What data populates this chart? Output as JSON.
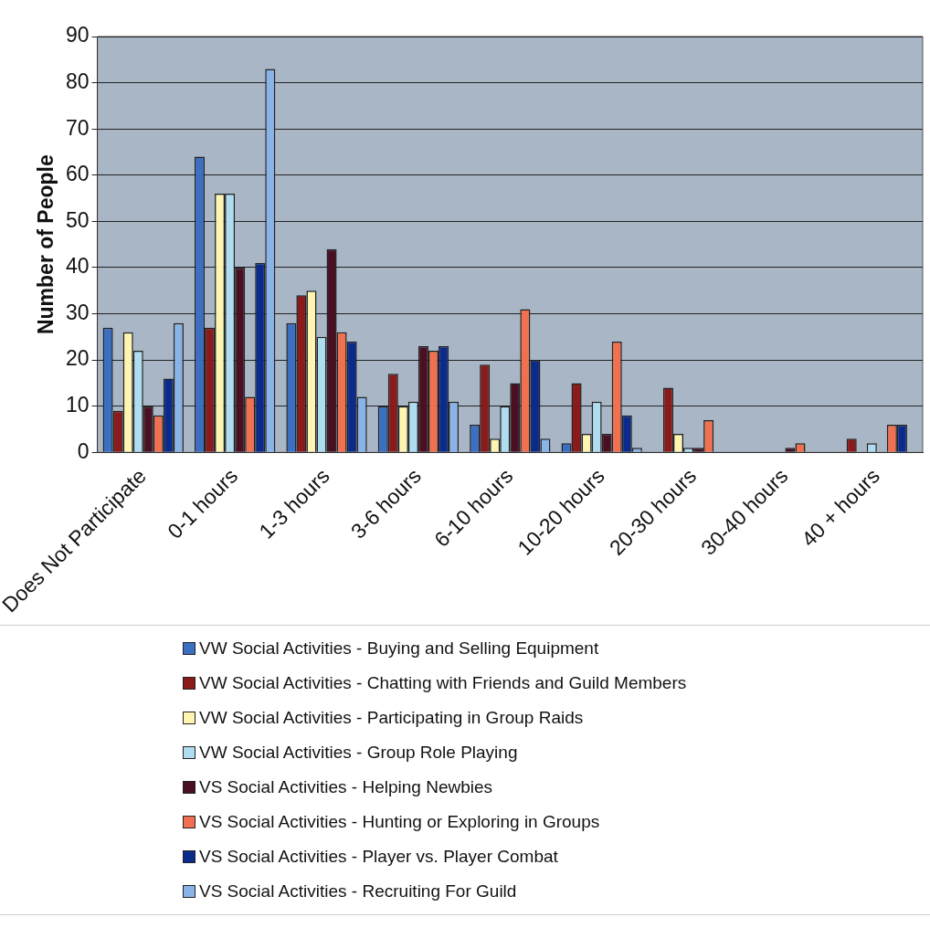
{
  "chart_data": {
    "type": "bar",
    "ylabel": "Number of People",
    "categories": [
      "Does Not Participate",
      "0-1 hours",
      "1-3 hours",
      "3-6 hours",
      "6-10 hours",
      "10-20 hours",
      "20-30 hours",
      "30-40 hours",
      "40 + hours"
    ],
    "series": [
      {
        "name": "VW Social Activities - Buying and Selling Equipment",
        "color": "#3a6fc4",
        "values": [
          27,
          64,
          28,
          10,
          6,
          2,
          0,
          0,
          0
        ]
      },
      {
        "name": "VW Social Activities - Chatting with Friends and Guild Members",
        "color": "#8b1a1a",
        "values": [
          9,
          27,
          34,
          17,
          19,
          15,
          14,
          0,
          3
        ]
      },
      {
        "name": "VW Social Activities - Participating in Group Raids",
        "color": "#fff5b0",
        "values": [
          26,
          56,
          35,
          10,
          3,
          4,
          4,
          0,
          0
        ]
      },
      {
        "name": "VW Social Activities - Group Role Playing",
        "color": "#b0dcf0",
        "values": [
          22,
          56,
          25,
          11,
          10,
          11,
          1,
          0,
          2
        ]
      },
      {
        "name": "VS Social Activities - Helping Newbies",
        "color": "#4a0f20",
        "values": [
          10,
          40,
          44,
          23,
          15,
          4,
          1,
          1,
          0
        ]
      },
      {
        "name": "VS Social Activities - Hunting or Exploring in Groups",
        "color": "#f07050",
        "values": [
          8,
          12,
          26,
          22,
          31,
          24,
          7,
          2,
          6
        ]
      },
      {
        "name": "VS Social Activities - Player vs. Player Combat",
        "color": "#0a2a8c",
        "values": [
          16,
          41,
          24,
          23,
          20,
          8,
          0,
          0,
          6
        ]
      },
      {
        "name": "VS Social Activities - Recruiting For Guild",
        "color": "#8ab4e8",
        "values": [
          28,
          83,
          12,
          11,
          3,
          1,
          0,
          0,
          0
        ]
      }
    ],
    "ylim": [
      0,
      90
    ],
    "yticks": [
      0,
      10,
      20,
      30,
      40,
      50,
      60,
      70,
      80,
      90
    ],
    "grid": "y",
    "legend": "bottom"
  }
}
